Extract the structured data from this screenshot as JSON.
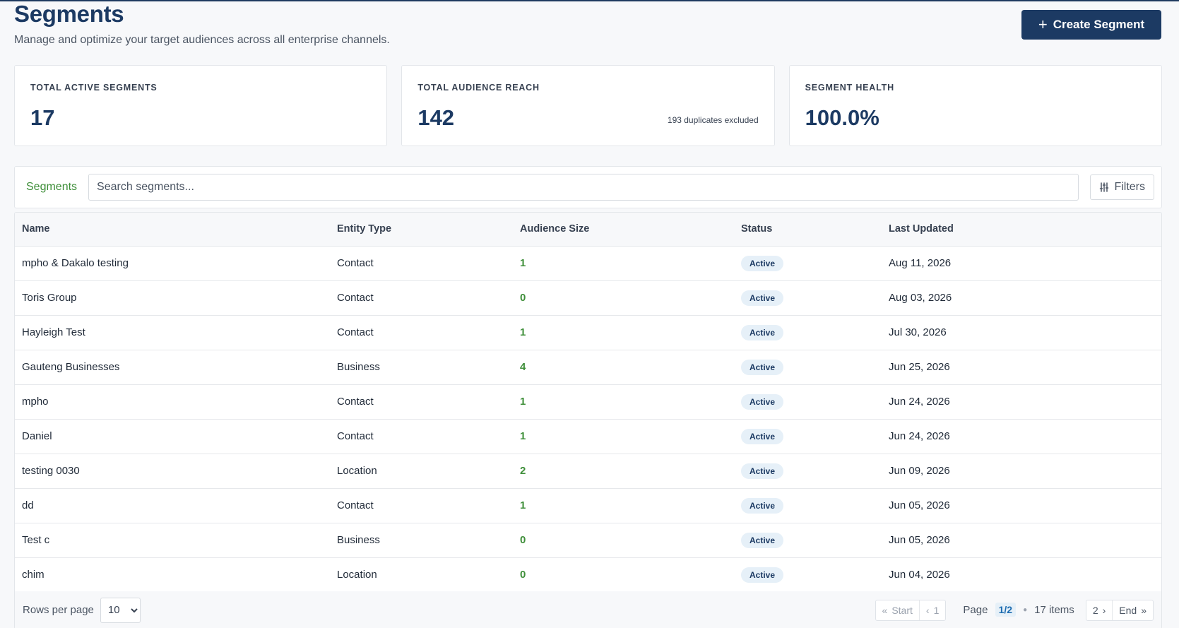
{
  "header": {
    "title": "Segments",
    "subtitle": "Manage and optimize your target audiences across all enterprise channels.",
    "create_label": "Create Segment"
  },
  "stats": [
    {
      "label": "TOTAL ACTIVE SEGMENTS",
      "value": "17",
      "note": ""
    },
    {
      "label": "TOTAL AUDIENCE REACH",
      "value": "142",
      "note": "193 duplicates excluded"
    },
    {
      "label": "SEGMENT HEALTH",
      "value": "100.0%",
      "note": ""
    }
  ],
  "toolbar": {
    "tab_label": "Segments",
    "search_placeholder": "Search segments...",
    "filters_label": "Filters"
  },
  "table": {
    "columns": [
      "Name",
      "Entity Type",
      "Audience Size",
      "Status",
      "Last Updated"
    ],
    "rows": [
      {
        "name": "mpho & Dakalo testing",
        "type": "Contact",
        "size": "1",
        "status": "Active",
        "updated": "Aug 11, 2026"
      },
      {
        "name": "Toris Group",
        "type": "Contact",
        "size": "0",
        "status": "Active",
        "updated": "Aug 03, 2026"
      },
      {
        "name": "Hayleigh Test",
        "type": "Contact",
        "size": "1",
        "status": "Active",
        "updated": "Jul 30, 2026"
      },
      {
        "name": "Gauteng Businesses",
        "type": "Business",
        "size": "4",
        "status": "Active",
        "updated": "Jun 25, 2026"
      },
      {
        "name": "mpho",
        "type": "Contact",
        "size": "1",
        "status": "Active",
        "updated": "Jun 24, 2026"
      },
      {
        "name": "Daniel",
        "type": "Contact",
        "size": "1",
        "status": "Active",
        "updated": "Jun 24, 2026"
      },
      {
        "name": "testing 0030",
        "type": "Location",
        "size": "2",
        "status": "Active",
        "updated": "Jun 09, 2026"
      },
      {
        "name": "dd",
        "type": "Contact",
        "size": "1",
        "status": "Active",
        "updated": "Jun 05, 2026"
      },
      {
        "name": "Test c",
        "type": "Business",
        "size": "0",
        "status": "Active",
        "updated": "Jun 05, 2026"
      },
      {
        "name": "chim",
        "type": "Location",
        "size": "0",
        "status": "Active",
        "updated": "Jun 04, 2026"
      }
    ]
  },
  "footer": {
    "rows_per_page_label": "Rows per page",
    "rows_per_page_value": "10",
    "start_label": "Start",
    "prev_page": "1",
    "page_label": "Page",
    "page_current": "1/2",
    "items_label": "17 items",
    "next_page": "2",
    "end_label": "End"
  },
  "colors": {
    "primary": "#1c3a63",
    "accent_green": "#3f8f3a",
    "badge_bg": "#e6f0f8"
  }
}
